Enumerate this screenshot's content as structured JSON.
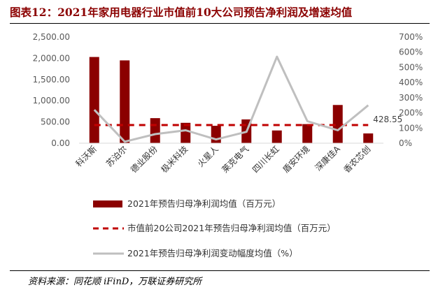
{
  "figure": {
    "title": "图表12：2021年家用电器行业市值前10大公司预告净利润及增速均值",
    "source": "资料来源：同花顺 iFinD，万联证券研究所"
  },
  "colors": {
    "bar": "#8b0000",
    "avg_line": "#c00000",
    "growth_line": "#bfbfbf",
    "title": "#8b0000"
  },
  "chart_data": {
    "type": "bar",
    "categories": [
      "科沃斯",
      "苏泊尔",
      "德业股份",
      "极米科技",
      "火星人",
      "莱克电气",
      "四川长虹",
      "盾安环境",
      "深康佳A",
      "香农芯创"
    ],
    "series": [
      {
        "name": "2021年预告归母净利润均值（百万元）",
        "type": "bar",
        "axis": "left",
        "values": [
          2030,
          1950,
          590,
          480,
          410,
          560,
          300,
          450,
          900,
          230
        ]
      },
      {
        "name": "市值前20公司2021年预告归母净利润均值（百万元）",
        "type": "line-dashed",
        "axis": "left",
        "values": [
          428.55,
          428.55,
          428.55,
          428.55,
          428.55,
          428.55,
          428.55,
          428.55,
          428.55,
          428.55
        ]
      },
      {
        "name": "2021年预告归母净利润变动幅度均值（%）",
        "type": "line",
        "axis": "right",
        "values": [
          220,
          10,
          60,
          85,
          25,
          75,
          570,
          145,
          85,
          250
        ]
      }
    ],
    "y_left": {
      "ylim": [
        0,
        2500
      ],
      "ticks": [
        0,
        500,
        1000,
        1500,
        2000,
        2500
      ],
      "tick_labels": [
        "0.00",
        "500.00",
        "1,000.00",
        "1,500.00",
        "2,000.00",
        "2,500.00"
      ]
    },
    "y_right": {
      "ylim": [
        0,
        700
      ],
      "ticks": [
        0,
        100,
        200,
        300,
        400,
        500,
        600,
        700
      ],
      "tick_labels": [
        "0%",
        "100%",
        "200%",
        "300%",
        "400%",
        "500%",
        "600%",
        "700%"
      ]
    },
    "annotations": [
      {
        "text": "428.55",
        "series": 1
      }
    ],
    "grid": false,
    "legend_position": "bottom"
  }
}
